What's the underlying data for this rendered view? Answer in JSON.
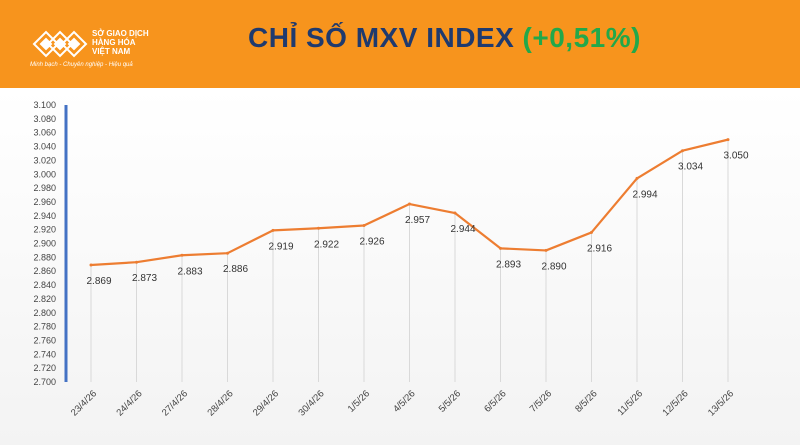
{
  "header": {
    "logo_lines": [
      "SỞ GIAO DỊCH",
      "HÀNG HÓA",
      "VIỆT NAM"
    ],
    "logo_tagline": "Minh bạch - Chuyên nghiệp - Hiệu quả",
    "title": "CHỈ SỐ MXV INDEX",
    "change": "(+0,51%)",
    "colors": {
      "header_bg": "#f7941d",
      "title": "#1f3a6e",
      "change": "#22a84a",
      "line": "#ed7d31",
      "axis": "#4472c4"
    }
  },
  "chart_data": {
    "type": "line",
    "title": "CHỈ SỐ MXV INDEX (+0,51%)",
    "categories": [
      "23/4/26",
      "24/4/26",
      "27/4/26",
      "28/4/26",
      "29/4/26",
      "30/4/26",
      "1/5/26",
      "4/5/26",
      "5/5/26",
      "6/5/26",
      "7/5/26",
      "8/5/26",
      "11/5/26",
      "12/5/26",
      "13/5/26"
    ],
    "values": [
      2869,
      2873,
      2883,
      2886,
      2919,
      2922,
      2926,
      2957,
      2944,
      2893,
      2890,
      2916,
      2994,
      3034,
      3050
    ],
    "value_labels": [
      "2.869",
      "2.873",
      "2.883",
      "2.886",
      "2.919",
      "2.922",
      "2.926",
      "2.957",
      "2.944",
      "2.893",
      "2.890",
      "2.916",
      "2.994",
      "3.034",
      "3.050"
    ],
    "ylim": [
      2700,
      3100
    ],
    "y_ticks": [
      2700,
      2720,
      2740,
      2760,
      2780,
      2800,
      2820,
      2840,
      2860,
      2880,
      2900,
      2920,
      2940,
      2960,
      2980,
      3000,
      3020,
      3040,
      3060,
      3080,
      3100
    ],
    "y_tick_labels": [
      "2.700",
      "2.720",
      "2.740",
      "2.760",
      "2.780",
      "2.800",
      "2.820",
      "2.840",
      "2.860",
      "2.880",
      "2.900",
      "2.920",
      "2.940",
      "2.960",
      "2.980",
      "3.000",
      "3.020",
      "3.040",
      "3.060",
      "3.080",
      "3.100"
    ],
    "xlabel": "",
    "ylabel": "",
    "grid": false
  }
}
